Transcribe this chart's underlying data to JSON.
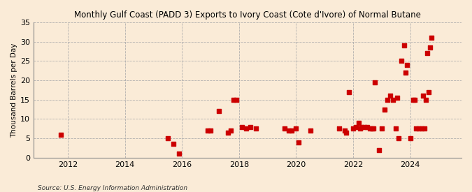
{
  "title": "Monthly Gulf Coast (PADD 3) Exports to Ivory Coast (Cote d'Ivore) of Normal Butane",
  "ylabel": "Thousand Barrels per Day",
  "source": "Source: U.S. Energy Information Administration",
  "background_color": "#faebd7",
  "plot_background_color": "#faebd7",
  "marker_color": "#cc0000",
  "ylim": [
    0,
    35
  ],
  "yticks": [
    0,
    5,
    10,
    15,
    20,
    25,
    30,
    35
  ],
  "xlim_start": 2010.8,
  "xlim_end": 2025.8,
  "xticks": [
    2012,
    2014,
    2016,
    2018,
    2020,
    2022,
    2024
  ],
  "grid_color": "#aaaaaa",
  "data_points": [
    [
      2011.75,
      6
    ],
    [
      2015.5,
      5
    ],
    [
      2015.7,
      3.5
    ],
    [
      2015.9,
      1
    ],
    [
      2016.9,
      7
    ],
    [
      2017.0,
      7
    ],
    [
      2017.3,
      12
    ],
    [
      2017.6,
      6.5
    ],
    [
      2017.7,
      7
    ],
    [
      2017.8,
      15
    ],
    [
      2017.9,
      15
    ],
    [
      2018.1,
      8
    ],
    [
      2018.25,
      7.5
    ],
    [
      2018.4,
      8
    ],
    [
      2018.6,
      7.5
    ],
    [
      2019.6,
      7.5
    ],
    [
      2019.75,
      7
    ],
    [
      2019.85,
      7
    ],
    [
      2020.0,
      7.5
    ],
    [
      2020.1,
      4
    ],
    [
      2020.5,
      7
    ],
    [
      2021.5,
      7.5
    ],
    [
      2021.7,
      7
    ],
    [
      2021.75,
      6.5
    ],
    [
      2021.85,
      17
    ],
    [
      2022.0,
      7.5
    ],
    [
      2022.1,
      8
    ],
    [
      2022.2,
      9
    ],
    [
      2022.25,
      7.5
    ],
    [
      2022.3,
      8
    ],
    [
      2022.4,
      8
    ],
    [
      2022.5,
      8
    ],
    [
      2022.6,
      7.5
    ],
    [
      2022.65,
      7.5
    ],
    [
      2022.7,
      7.5
    ],
    [
      2022.75,
      19.5
    ],
    [
      2022.9,
      2
    ],
    [
      2023.0,
      7.5
    ],
    [
      2023.1,
      12.5
    ],
    [
      2023.2,
      15
    ],
    [
      2023.3,
      16
    ],
    [
      2023.4,
      15
    ],
    [
      2023.5,
      7.5
    ],
    [
      2023.55,
      15.5
    ],
    [
      2023.6,
      5
    ],
    [
      2023.7,
      25
    ],
    [
      2023.8,
      29
    ],
    [
      2023.85,
      22
    ],
    [
      2023.9,
      24
    ],
    [
      2024.0,
      5
    ],
    [
      2024.1,
      15
    ],
    [
      2024.15,
      15
    ],
    [
      2024.2,
      7.5
    ],
    [
      2024.3,
      7.5
    ],
    [
      2024.4,
      7.5
    ],
    [
      2024.45,
      16
    ],
    [
      2024.5,
      7.5
    ],
    [
      2024.55,
      15
    ],
    [
      2024.6,
      27
    ],
    [
      2024.65,
      17
    ],
    [
      2024.7,
      28.5
    ],
    [
      2024.75,
      31
    ]
  ]
}
